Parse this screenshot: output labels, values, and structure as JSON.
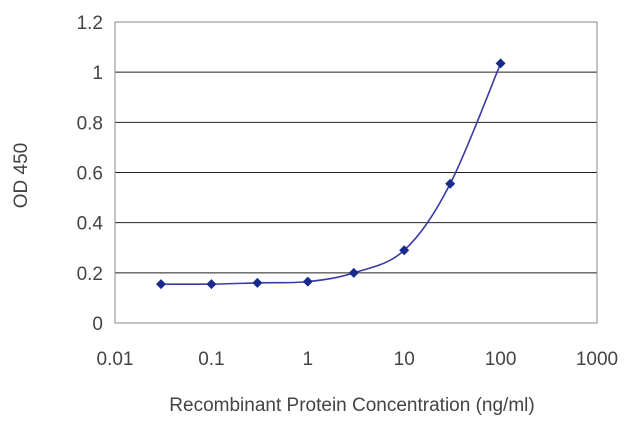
{
  "chart_data": {
    "type": "line",
    "title": "",
    "xlabel": "Recombinant Protein Concentration (ng/ml)",
    "ylabel": "OD 450",
    "x_scale": "log",
    "xlim": [
      0.01,
      1000
    ],
    "ylim": [
      0,
      1.2
    ],
    "x_tick_labels": [
      "0.01",
      "0.1",
      "1",
      "10",
      "100",
      "1000"
    ],
    "y_tick_labels": [
      "0",
      "0.2",
      "0.4",
      "0.6",
      "0.8",
      "1",
      "1.2"
    ],
    "grid": "horizontal",
    "legend": "none",
    "series": [
      {
        "x": [
          0.03,
          0.1,
          0.3,
          1,
          3,
          10,
          30,
          100
        ],
        "y": [
          0.155,
          0.155,
          0.16,
          0.165,
          0.2,
          0.29,
          0.555,
          1.035
        ]
      }
    ],
    "colors": {
      "line": "#3b3ba8",
      "marker": "#1a2a8c",
      "grid": "#222222",
      "plot_border": "#888888",
      "text": "#444444"
    }
  }
}
